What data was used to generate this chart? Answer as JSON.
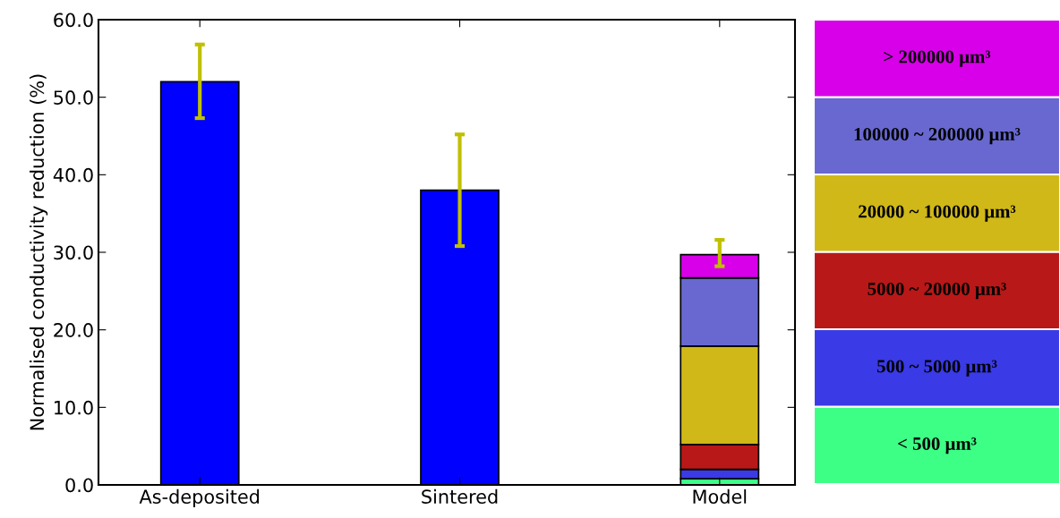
{
  "chart_data": {
    "type": "bar",
    "ylabel": "Normalised conductivity reduction (%)",
    "categories": [
      "As-deposited",
      "Sintered",
      "Model"
    ],
    "stacked": true,
    "legend": "right",
    "grid": false,
    "ylim": [
      0,
      60
    ],
    "yticks": [
      {
        "value": 0,
        "label": "0.0"
      },
      {
        "value": 10,
        "label": "10.0"
      },
      {
        "value": 20,
        "label": "20.0"
      },
      {
        "value": 30,
        "label": "30.0"
      },
      {
        "value": 40,
        "label": "40.0"
      },
      {
        "value": 50,
        "label": "50.0"
      },
      {
        "value": 60,
        "label": "60.0"
      }
    ],
    "series": [
      {
        "color": "#0000ff",
        "values": [
          52.0,
          38.0,
          null
        ],
        "errors": [
          [
            47.3,
            56.8
          ],
          [
            30.8,
            45.2
          ],
          null
        ]
      },
      {
        "name": "< 500 μm³",
        "color": "#3dff86",
        "values": [
          null,
          null,
          0.8
        ]
      },
      {
        "name": "500 ~ 5000 μm³",
        "color": "#3a3ae6",
        "values": [
          null,
          null,
          1.2
        ]
      },
      {
        "name": "5000 ~ 20000 μm³",
        "color": "#b81818",
        "values": [
          null,
          null,
          3.2
        ]
      },
      {
        "name": "20000 ~ 100000 μm³",
        "color": "#d0b818",
        "values": [
          null,
          null,
          12.7
        ]
      },
      {
        "name": "100000 ~ 200000 μm³",
        "color": "#6868d0",
        "values": [
          null,
          null,
          8.8
        ]
      },
      {
        "name": "> 200000 μm³",
        "color": "#d800e8",
        "values": [
          null,
          null,
          3.0
        ],
        "errors": [
          null,
          null,
          [
            28.2,
            31.6
          ]
        ]
      }
    ]
  }
}
